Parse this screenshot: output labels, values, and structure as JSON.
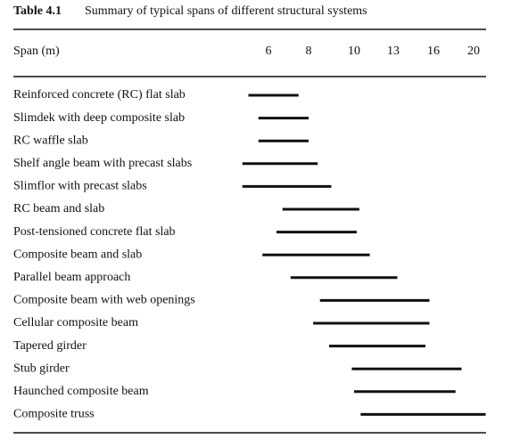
{
  "chart_data": {
    "type": "range",
    "table_label": "Table 4.1",
    "title": "Summary of typical spans of different structural systems",
    "x_label": "Span (m)",
    "xticks": [
      6,
      8,
      10,
      13,
      16,
      20
    ],
    "color": "#111111",
    "categories": [
      "Reinforced concrete (RC) flat slab",
      "Slimdek with deep composite slab",
      "RC waffle slab",
      "Shelf angle beam with precast slabs",
      "Slimflor with precast slabs",
      "RC beam and slab",
      "Post-tensioned concrete flat slab",
      "Composite beam and slab",
      "Parallel beam approach",
      "Composite beam with web openings",
      "Cellular composite beam",
      "Tapered girder",
      "Stub girder",
      "Haunched composite beam",
      "Composite truss"
    ],
    "starts": [
      5,
      5.5,
      5.5,
      4.7,
      4.7,
      6.7,
      6.4,
      5.7,
      7.1,
      8.5,
      8.2,
      8.9,
      9.9,
      10,
      10.5
    ],
    "ends": [
      7.5,
      8,
      8,
      8.4,
      9,
      10.4,
      10.2,
      11.2,
      13.3,
      15.7,
      15.7,
      15.4,
      18.8,
      18.2,
      21.2
    ]
  }
}
